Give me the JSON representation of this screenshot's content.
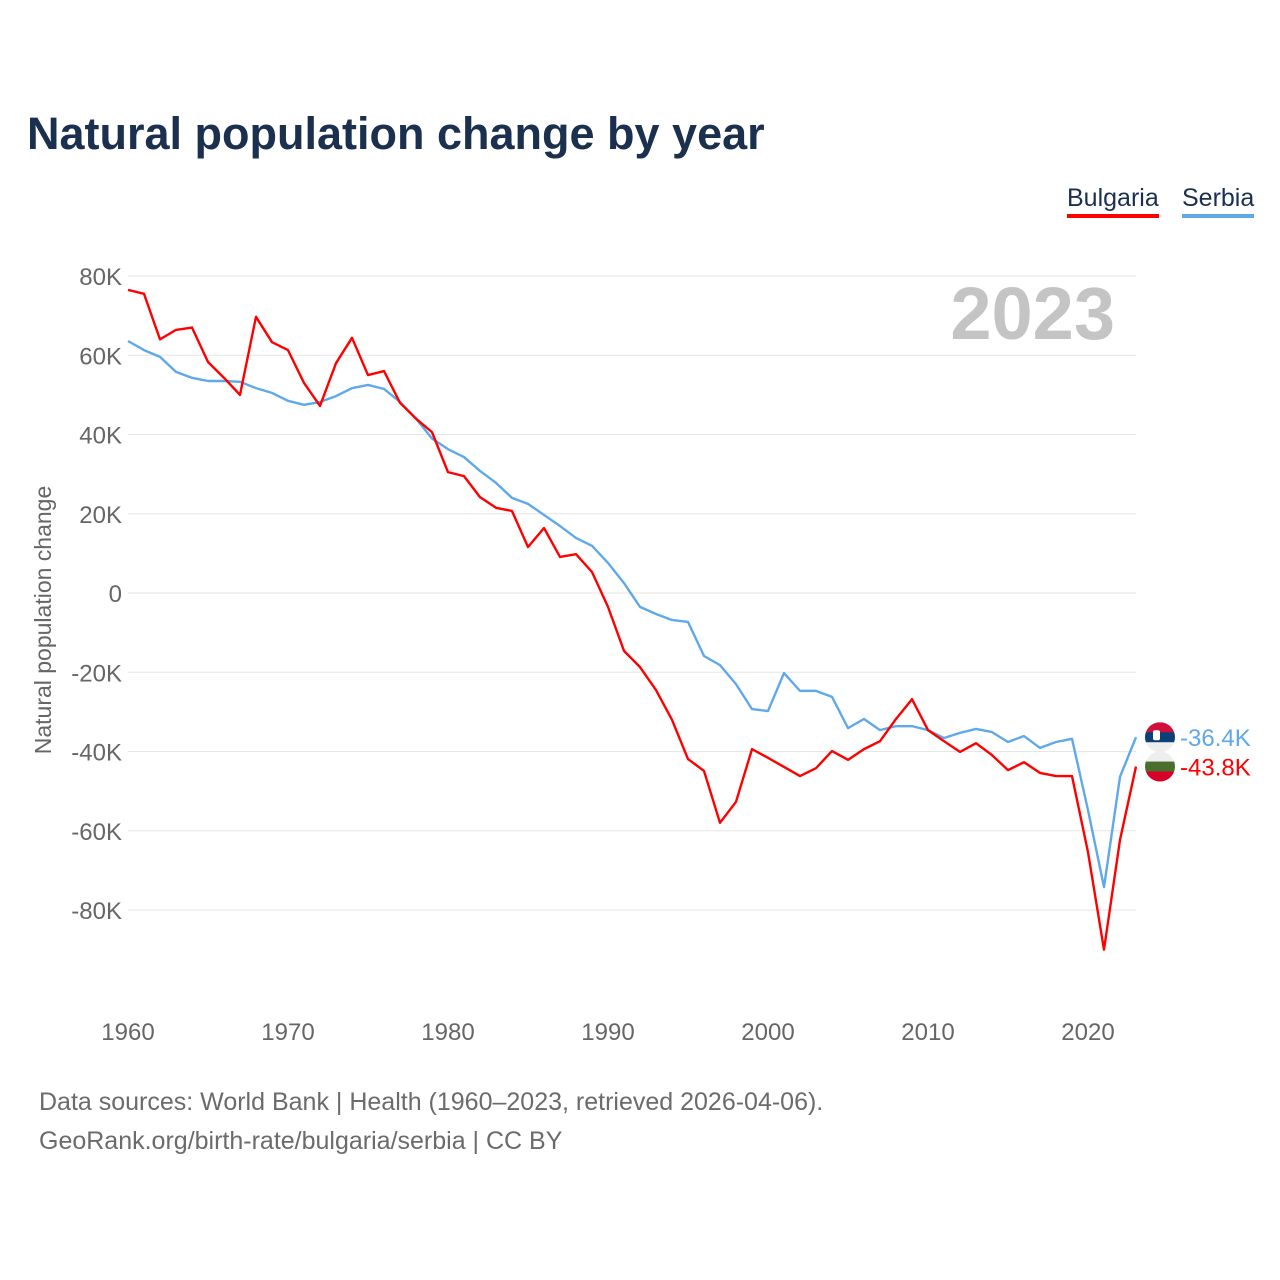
{
  "chart_data": {
    "type": "line",
    "title": "Natural population change by year",
    "xlabel": "",
    "ylabel": "Natural population change",
    "xlim": [
      1960,
      2023
    ],
    "ylim": [
      -100000,
      80000
    ],
    "grid": true,
    "legend_placement": "top-right",
    "x_ticks": [
      1960,
      1970,
      1980,
      1990,
      2000,
      2010,
      2020
    ],
    "x_tick_labels": [
      "1960",
      "1970",
      "1980",
      "1990",
      "2000",
      "2010",
      "2020"
    ],
    "y_ticks": [
      80000,
      60000,
      40000,
      20000,
      0,
      -20000,
      -40000,
      -60000,
      -80000
    ],
    "y_tick_labels": [
      "80K",
      "60K",
      "40K",
      "20K",
      "0",
      "-20K",
      "-40K",
      "-60K",
      "-80K"
    ],
    "year_label": "2023",
    "x_start": 1960,
    "series": [
      {
        "name": "Bulgaria",
        "color": "#ff0000",
        "end_label": "-43.8K",
        "flag": "bulgaria-flag",
        "values": [
          76.5,
          75.5,
          64,
          66.4,
          67,
          58.3,
          54.3,
          50,
          69.7,
          63.3,
          61.3,
          53,
          47.2,
          58,
          64.4,
          55,
          56,
          48,
          44,
          40.6,
          30.5,
          29.5,
          24.2,
          21.5,
          20.7,
          11.6,
          16.4,
          9.1,
          9.8,
          5.3,
          -3.5,
          -14.6,
          -18.7,
          -24.5,
          -32,
          -41.9,
          -44.9,
          -58,
          -52.7,
          -39.4,
          -41.6,
          -43.9,
          -46.2,
          -44.2,
          -39.9,
          -42.1,
          -39.4,
          -37.4,
          -31.8,
          -26.8,
          -34.6,
          -37.4,
          -40.1,
          -37.9,
          -40.9,
          -44.7,
          -42.7,
          -45.4,
          -46.2,
          -46.2,
          -65.4,
          -90,
          -62.3,
          -43.8
        ]
      },
      {
        "name": "Serbia",
        "color": "#5fa8ea",
        "end_label": "-36.4K",
        "flag": "serbia-flag",
        "values": [
          63.6,
          61.3,
          59.6,
          55.8,
          54.3,
          53.5,
          53.5,
          53.3,
          51.7,
          50.5,
          48.5,
          47.5,
          48.2,
          49.7,
          51.7,
          52.5,
          51.5,
          48.2,
          44,
          39,
          36.3,
          34.3,
          30.8,
          27.8,
          24,
          22.5,
          19.7,
          16.9,
          13.9,
          11.9,
          7.6,
          2.5,
          -3.5,
          -5.3,
          -6.8,
          -7.3,
          -15.9,
          -18.2,
          -23,
          -29.3,
          -29.8,
          -20.2,
          -24.7,
          -24.7,
          -26.2,
          -34.1,
          -31.8,
          -34.6,
          -33.6,
          -33.6,
          -34.6,
          -36.6,
          -35.3,
          -34.3,
          -35.1,
          -37.6,
          -36.1,
          -39.1,
          -37.6,
          -36.8,
          -54.8,
          -74.2,
          -46.4,
          -36.4
        ]
      }
    ],
    "value_unit": "thousands"
  },
  "legend": {
    "bulgaria": "Bulgaria",
    "serbia": "Serbia"
  },
  "footer": {
    "line1": "Data sources: World Bank | Health (1960–2023, retrieved 2026-04-06).",
    "line2": "GeoRank.org/birth-rate/bulgaria/serbia | CC BY"
  }
}
